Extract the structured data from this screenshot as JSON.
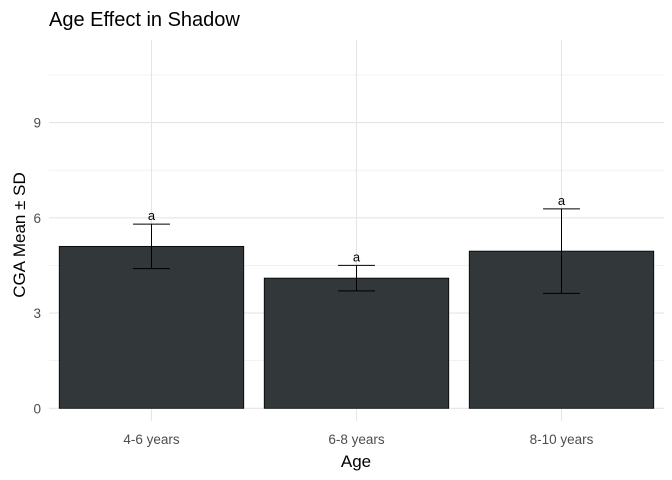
{
  "chart_data": {
    "type": "bar",
    "title": "Age Effect in Shadow",
    "xlabel": "Age",
    "ylabel": "CGA Mean ± SD",
    "categories": [
      "4-6 years",
      "6-8 years",
      "8-10 years"
    ],
    "values": [
      5.1,
      4.1,
      4.95
    ],
    "sd": [
      0.7,
      0.4,
      1.33
    ],
    "significance_labels": [
      "a",
      "a",
      "a"
    ],
    "ylim": [
      -0.4,
      11.6
    ],
    "yticks": [
      0,
      3,
      6,
      9
    ],
    "ytick_labels": [
      "0",
      "3",
      "6",
      "9"
    ],
    "grid": true,
    "bar_color": "#323739"
  }
}
